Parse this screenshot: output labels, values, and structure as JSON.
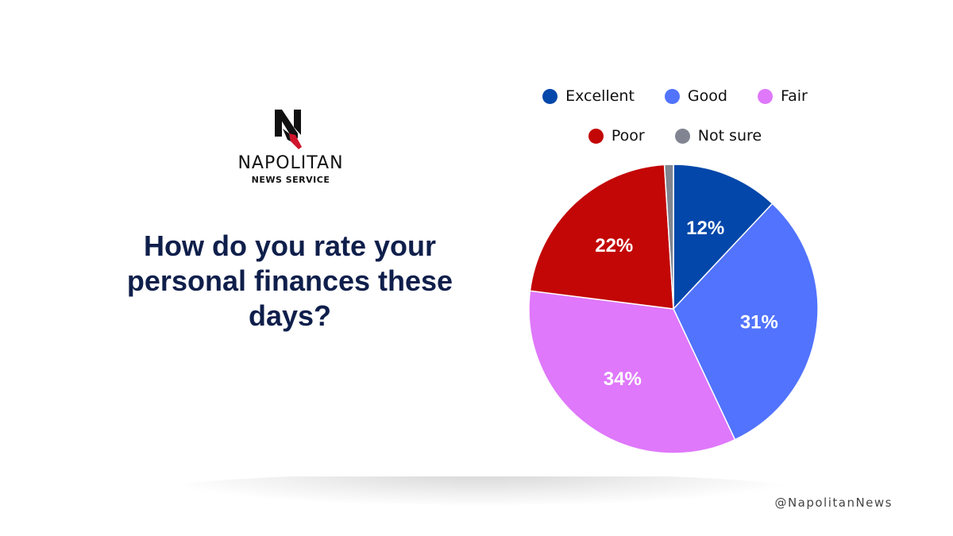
{
  "logo": {
    "name": "NAPOLITAN",
    "subtitle": "NEWS SERVICE",
    "mark_letter": "N",
    "mark_color": "#111111",
    "accent_color": "#d0142c"
  },
  "question": "How do you rate your personal finances these days?",
  "handle": "@NapolitanNews",
  "chart_data": {
    "type": "pie",
    "title": "How do you rate your personal finances these days?",
    "start_angle_deg": 0,
    "direction": "clockwise",
    "legend_position": "top",
    "slices": [
      {
        "label": "Excellent",
        "value": 12,
        "display": "12%",
        "color": "#0347aa"
      },
      {
        "label": "Good",
        "value": 31,
        "display": "31%",
        "color": "#5173fd"
      },
      {
        "label": "Fair",
        "value": 34,
        "display": "34%",
        "color": "#df78fb"
      },
      {
        "label": "Poor",
        "value": 22,
        "display": "22%",
        "color": "#c30606"
      },
      {
        "label": "Not sure",
        "value": 1,
        "display": "",
        "color": "#808591"
      }
    ]
  }
}
